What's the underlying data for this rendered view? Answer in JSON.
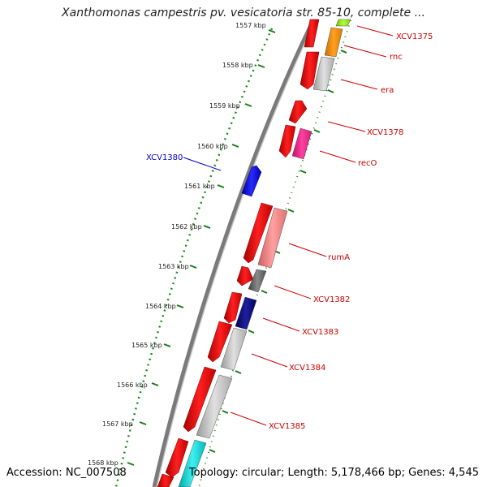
{
  "title": "Xanthomonas campestris pv. vesicatoria str. 85-10, complete ...",
  "footer": {
    "accession": "Accession: NC_007508",
    "summary": "Topology: circular; Length: 5,178,466 bp; Genes: 4,545"
  },
  "ticks": [
    "1557 kbp",
    "1558 kbp",
    "1559 kbp",
    "1560 kbp",
    "1561 kbp",
    "1562 kbp",
    "1563 kbp",
    "1564 kbp",
    "1565 kbp",
    "1566 kbp",
    "1567 kbp",
    "1568 kbp"
  ],
  "colors": {
    "backbone": "#808080",
    "cds_forward": "#ff0000",
    "tick_dots": "#1a8a1a",
    "tick_mark": "#1a7a1a",
    "label_red": "#cc0000",
    "label_blue": "#0000cc"
  },
  "gene_labels": [
    {
      "text": "XCV1375",
      "color": "#cc0000"
    },
    {
      "text": "rnc",
      "color": "#cc0000"
    },
    {
      "text": "era",
      "color": "#cc0000"
    },
    {
      "text": "XCV1378",
      "color": "#cc0000"
    },
    {
      "text": "recO",
      "color": "#cc0000"
    },
    {
      "text": "XCV1380",
      "color": "#0000cc"
    },
    {
      "text": "rumA",
      "color": "#cc0000"
    },
    {
      "text": "XCV1382",
      "color": "#cc0000"
    },
    {
      "text": "XCV1383",
      "color": "#cc0000"
    },
    {
      "text": "XCV1384",
      "color": "#cc0000"
    },
    {
      "text": "XCV1385",
      "color": "#cc0000"
    }
  ]
}
